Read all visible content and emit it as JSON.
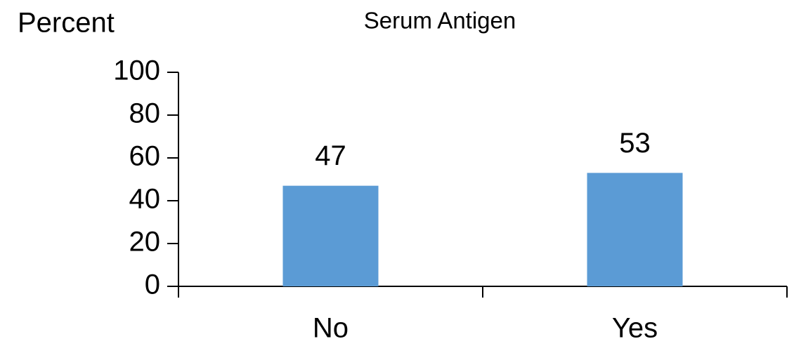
{
  "chart_data": {
    "type": "bar",
    "title": "Serum Antigen",
    "y_label": "Percent",
    "categories": [
      "No",
      "Yes"
    ],
    "values": [
      47,
      53
    ],
    "color": "#5b9bd5",
    "ylim": [
      0,
      100
    ],
    "yticks": [
      0,
      20,
      40,
      60,
      80,
      100
    ],
    "data_labels": true
  }
}
